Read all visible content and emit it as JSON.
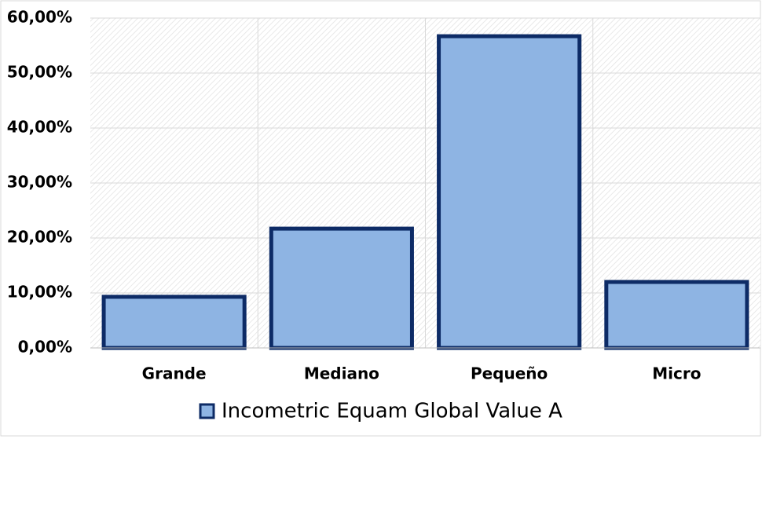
{
  "chart_data": {
    "type": "bar",
    "categories": [
      "Grande",
      "Mediano",
      "Pequeño",
      "Micro"
    ],
    "series": [
      {
        "name": "Incometric Equam Global Value A",
        "color": "#8eb4e3",
        "values": [
          9.3,
          21.7,
          56.7,
          12.0
        ]
      }
    ],
    "ylim": [
      0,
      60
    ],
    "yticks": [
      {
        "value": 0,
        "label": "0,00%"
      },
      {
        "value": 10,
        "label": "10,00%"
      },
      {
        "value": 20,
        "label": "20,00%"
      },
      {
        "value": 30,
        "label": "30,00%"
      },
      {
        "value": 40,
        "label": "40,00%"
      },
      {
        "value": 50,
        "label": "50,00%"
      },
      {
        "value": 60,
        "label": "60,00%"
      }
    ],
    "grid": true
  }
}
